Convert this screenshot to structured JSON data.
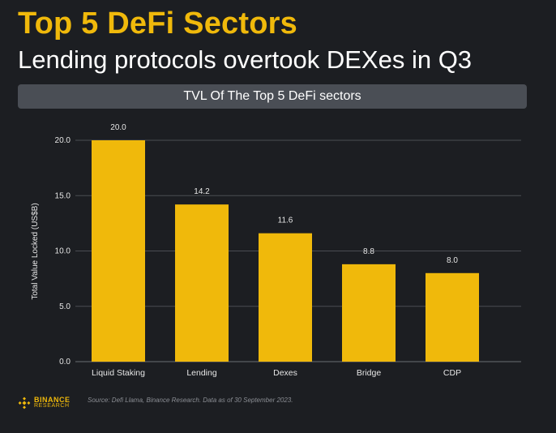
{
  "header": {
    "title": "Top 5 DeFi Sectors",
    "subtitle": "Lending protocols overtook DEXes in Q3"
  },
  "colors": {
    "accent": "#f0b90b",
    "background": "#1c1e22",
    "title_bar": "#4a4e55"
  },
  "chart_data": {
    "type": "bar",
    "title": "TVL Of The Top 5 DeFi sectors",
    "categories": [
      "Liquid Staking",
      "Lending",
      "Dexes",
      "Bridge",
      "CDP"
    ],
    "values": [
      20.0,
      14.2,
      11.6,
      8.8,
      8.0
    ],
    "value_labels": [
      "20.0",
      "14.2",
      "11.6",
      "8.8",
      "8.0"
    ],
    "xlabel": "",
    "ylabel": "Total Value Locked (US$B)",
    "ylim": [
      0,
      20
    ],
    "yticks": [
      0,
      5,
      10,
      15,
      20
    ],
    "ytick_labels": [
      "0.0",
      "5.0",
      "10.0",
      "15.0",
      "20.0"
    ],
    "grid": true,
    "bar_color": "#f0b90b"
  },
  "footer": {
    "logo_line1": "BINANCE",
    "logo_line2": "RESEARCH",
    "source": "Source: Defi Llama, Binance Research. Data as of 30 September 2023."
  }
}
